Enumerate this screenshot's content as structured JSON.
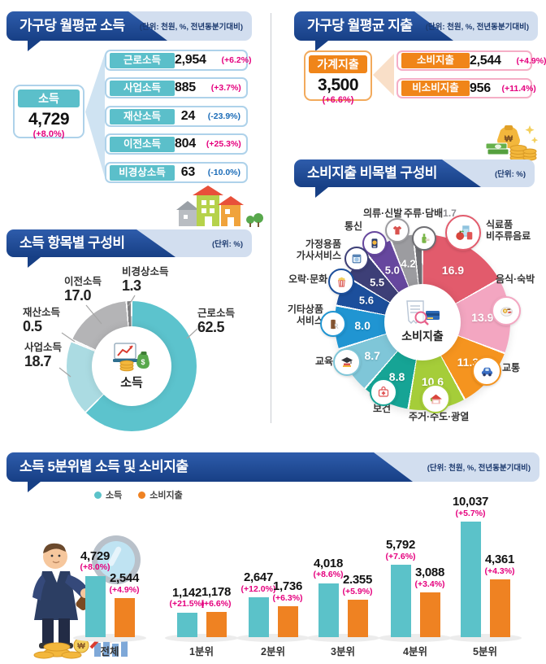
{
  "colors": {
    "header_blue": "#1b4896",
    "header_strip": "#d2deef",
    "positive_change": "#e5007e",
    "negative_change": "#1b6cb8",
    "income_accent": "#5bbfca",
    "expenditure_accent": "#f08519",
    "income_bar": "#5bc2c9",
    "expenditure_bar": "#ef8222"
  },
  "income_panel": {
    "title": "가구당 월평균 소득",
    "unit": "(단위: 천원, %, 전년동분기대비)",
    "total": {
      "label": "소득",
      "value": "4,729",
      "change": "(+8.0%)"
    },
    "items": [
      {
        "label": "근로소득",
        "value": "2,954",
        "change": "(+6.2%)",
        "negative": false
      },
      {
        "label": "사업소득",
        "value": "885",
        "change": "(+3.7%)",
        "negative": false
      },
      {
        "label": "재산소득",
        "value": "24",
        "change": "(-23.9%)",
        "negative": true
      },
      {
        "label": "이전소득",
        "value": "804",
        "change": "(+25.3%)",
        "negative": false
      },
      {
        "label": "비경상소득",
        "value": "63",
        "change": "(-10.0%)",
        "negative": true
      }
    ]
  },
  "expenditure_panel": {
    "title": "가구당 월평균 지출",
    "unit": "(단위: 천원, %, 전년동분기대비)",
    "total": {
      "label": "가계지출",
      "value": "3,500",
      "change": "(+6.6%)"
    },
    "items": [
      {
        "label": "소비지출",
        "value": "2,544",
        "change": "(+4.9%)"
      },
      {
        "label": "비소비지출",
        "value": "956",
        "change": "(+11.4%)"
      }
    ]
  },
  "income_composition": {
    "title": "소득 항목별 구성비",
    "unit": "(단위: %)"
  },
  "expenditure_composition": {
    "title": "소비지출 비목별 구성비",
    "unit": "(단위: %)"
  },
  "quintile_panel": {
    "title": "소득 5분위별 소득 및 소비지출",
    "unit": "(단위: 천원, %, 전년동분기대비)",
    "legend": [
      {
        "label": "소득",
        "color": "#5bc2c9"
      },
      {
        "label": "소비지출",
        "color": "#ef8222"
      }
    ]
  },
  "chart_data": [
    {
      "id": "income_composition_donut",
      "type": "pie",
      "subtype": "donut",
      "title": "소득 항목별 구성비",
      "unit": "%",
      "center_label": "소득",
      "slices": [
        {
          "label": "근로소득",
          "value": 62.5,
          "display": "62.5",
          "color": "#5cc3cd"
        },
        {
          "label": "사업소득",
          "value": 18.7,
          "display": "18.7",
          "color": "#abdbe2"
        },
        {
          "label": "재산소득",
          "value": 0.5,
          "display": "0.5",
          "color": "#e9e9e9"
        },
        {
          "label": "이전소득",
          "value": 17.0,
          "display": "17.0",
          "color": "#b4b4b6"
        },
        {
          "label": "비경상소득",
          "value": 1.3,
          "display": "1.3",
          "color": "#7e7e80"
        }
      ]
    },
    {
      "id": "expenditure_composition_pie",
      "type": "pie",
      "title": "소비지출 비목별 구성비",
      "unit": "%",
      "center_label": "소비지출",
      "slices": [
        {
          "label": "주류·담배",
          "value": 1.7,
          "display": "1.7",
          "color": "#6e6e73"
        },
        {
          "label": "식료품·비주류음료",
          "value": 16.9,
          "display": "16.9",
          "color": "#e25b6c"
        },
        {
          "label": "음식·숙박",
          "value": 13.9,
          "display": "13.9",
          "color": "#f3a6c1"
        },
        {
          "label": "교통",
          "value": 11.3,
          "display": "11.3",
          "color": "#f5941f"
        },
        {
          "label": "주거·수도·광열",
          "value": 10.6,
          "display": "10.6",
          "color": "#a5cd39"
        },
        {
          "label": "보건",
          "value": 8.8,
          "display": "8.8",
          "color": "#16a495"
        },
        {
          "label": "교육",
          "value": 8.7,
          "display": "8.7",
          "color": "#7fc6d8"
        },
        {
          "label": "기타상품·서비스",
          "value": 8.0,
          "display": "8.0",
          "color": "#2095d2"
        },
        {
          "label": "오락·문화",
          "value": 5.6,
          "display": "5.6",
          "color": "#1c4f9c"
        },
        {
          "label": "가정용품·가사서비스",
          "value": 5.5,
          "display": "5.5",
          "color": "#3d3f77"
        },
        {
          "label": "통신",
          "value": 5.0,
          "display": "5.0",
          "color": "#66479e"
        },
        {
          "label": "의류·신발",
          "value": 4.2,
          "display": "4.2",
          "color": "#9c9ca0"
        }
      ]
    },
    {
      "id": "quintile_bars",
      "type": "bar",
      "categories": [
        "전체",
        "1분위",
        "2분위",
        "3분위",
        "4분위",
        "5분위"
      ],
      "series": [
        {
          "name": "소득",
          "color": "#5bc2c9",
          "values": [
            4729,
            1142,
            2647,
            4018,
            5792,
            10037
          ],
          "value_labels": [
            "4,729",
            "1,142",
            "2,647",
            "4,018",
            "5,792",
            "10,037"
          ],
          "changes": [
            "(+8.0%)",
            "(+21.5%)",
            "(+12.0%)",
            "(+8.6%)",
            "(+7.6%)",
            "(+5.7%)"
          ]
        },
        {
          "name": "소비지출",
          "color": "#ef8222",
          "values": [
            2544,
            1178,
            1736,
            2355,
            3088,
            4361
          ],
          "value_labels": [
            "2,544",
            "1,178",
            "1,736",
            "2.355",
            "3,088",
            "4,361"
          ],
          "changes": [
            "(+4.9%)",
            "(+6.6%)",
            "(+6.3%)",
            "(+5.9%)",
            "(+3.4%)",
            "(+4.3%)"
          ]
        }
      ]
    }
  ]
}
